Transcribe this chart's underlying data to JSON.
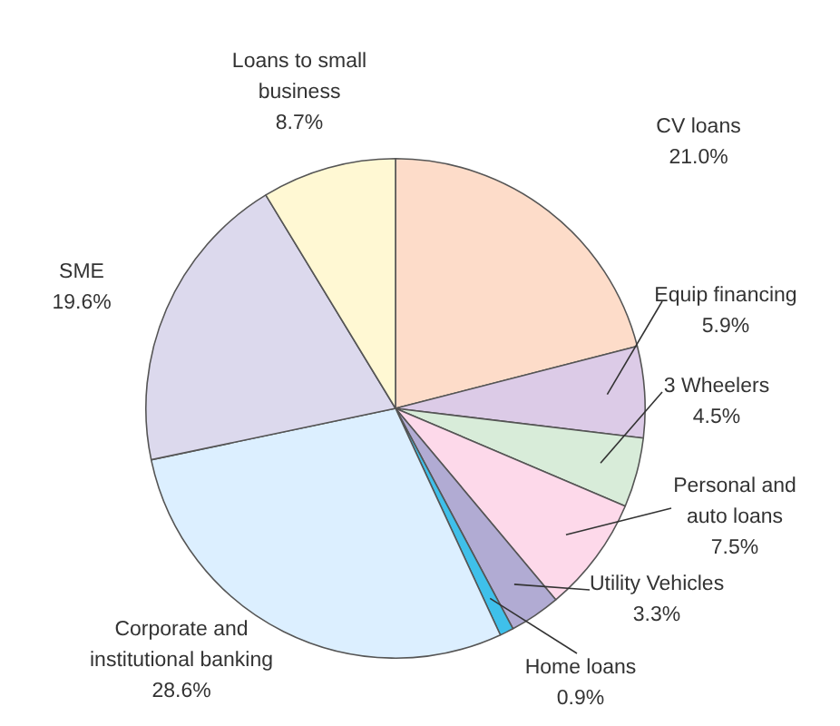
{
  "chart_data": {
    "type": "pie",
    "categories": [
      "CV loans",
      "Equip financing",
      "3 Wheelers",
      "Personal and auto loans",
      "Utility Vehicles",
      "Home loans",
      "Corporate and institutional banking",
      "SME",
      "Loans to small business"
    ],
    "values": [
      21.0,
      5.9,
      4.5,
      7.5,
      3.3,
      0.9,
      28.6,
      19.6,
      8.7
    ],
    "value_labels": [
      "21.0%",
      "5.9%",
      "4.5%",
      "7.5%",
      "3.3%",
      "0.9%",
      "28.6%",
      "19.6%",
      "8.7%"
    ],
    "colors": [
      "#fddcc9",
      "#dccbe7",
      "#d8ecd9",
      "#fdd9ea",
      "#b1abd3",
      "#3fc0ea",
      "#dcefff",
      "#dcd9ed",
      "#fff8d3"
    ],
    "legend": false
  }
}
